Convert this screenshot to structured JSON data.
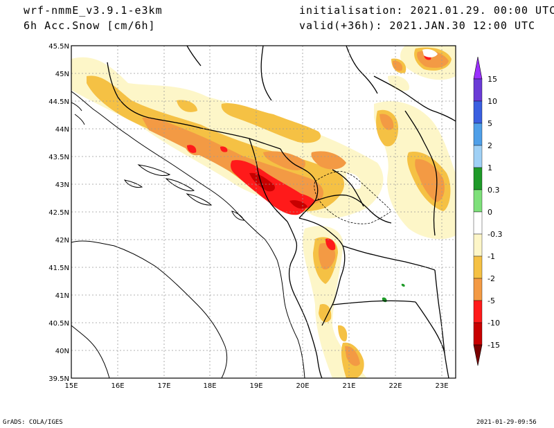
{
  "header": {
    "model": "wrf-nmmE_v3.9.1-e3km",
    "field": "6h Acc.Snow [cm/6h]",
    "init": "initialisation: 2021.01.29.  00:00 UTC",
    "valid": "valid(+36h): 2021.JAN.30 12:00 UTC"
  },
  "map": {
    "lat_labels": [
      "45.5N",
      "45N",
      "44.5N",
      "44N",
      "43.5N",
      "43N",
      "42.5N",
      "42N",
      "41.5N",
      "41N",
      "40.5N",
      "40N",
      "39.5N"
    ],
    "lon_labels": [
      "15E",
      "16E",
      "17E",
      "18E",
      "19E",
      "20E",
      "21E",
      "22E",
      "23E"
    ],
    "lon_range": [
      15,
      23.3
    ],
    "lat_range": [
      39.5,
      45.5
    ]
  },
  "colorbar": {
    "labels": [
      "15",
      "10",
      "5",
      "2",
      "1",
      "0.3",
      "0",
      "-0.3",
      "-1",
      "-2",
      "-5",
      "-10",
      "-15"
    ],
    "colors": [
      "#6a3bd6",
      "#3a5fe0",
      "#4f9fe8",
      "#9fd0f5",
      "#1e9a28",
      "#7ee07a",
      "#ffffff",
      "#fdf6c8",
      "#f5c144",
      "#f39a44",
      "#ff1a1a",
      "#c80000",
      "#8a0000"
    ],
    "top_arrow_color": "#9b30ff",
    "bottom_arrow_color": "#7a0000"
  },
  "footer": {
    "left": "GrADS: COLA/IGES",
    "right": "2021-01-29-09:56"
  }
}
